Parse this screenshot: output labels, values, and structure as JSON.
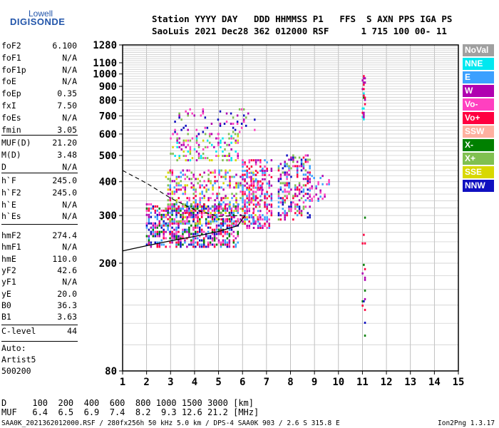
{
  "logo": {
    "line1": "Lowell",
    "line2": "DIGISONDE"
  },
  "header": {
    "row1": "Station YYYY DAY   DDD HHMMSS P1   FFS  S AXN PPS IGA PS",
    "row2": "SaoLuis 2021 Dec28 362 012000 RSF      1 715 100 00- 11"
  },
  "params": [
    {
      "name": "foF2",
      "value": "6.100"
    },
    {
      "name": "foF1",
      "value": "N/A"
    },
    {
      "name": "foF1p",
      "value": "N/A"
    },
    {
      "name": "foE",
      "value": "N/A"
    },
    {
      "name": "foEp",
      "value": "0.35"
    },
    {
      "name": "fxI",
      "value": "7.50"
    },
    {
      "name": "foEs",
      "value": "N/A"
    },
    {
      "name": "fmin",
      "value": "3.05"
    },
    {
      "name": "MUF(D)",
      "value": "21.20"
    },
    {
      "name": "M(D)",
      "value": "3.48"
    },
    {
      "name": "D",
      "value": "N/A"
    },
    {
      "name": "h`F",
      "value": "245.0"
    },
    {
      "name": "h`F2",
      "value": "245.0"
    },
    {
      "name": "h`E",
      "value": "N/A"
    },
    {
      "name": "h`Es",
      "value": "N/A"
    },
    {
      "name": "hmF2",
      "value": "274.4"
    },
    {
      "name": "hmF1",
      "value": "N/A"
    },
    {
      "name": "hmE",
      "value": "110.0"
    },
    {
      "name": "yF2",
      "value": "42.6"
    },
    {
      "name": "yF1",
      "value": "N/A"
    },
    {
      "name": "yE",
      "value": "20.0"
    },
    {
      "name": "B0",
      "value": "36.3"
    },
    {
      "name": "B1",
      "value": "3.63"
    }
  ],
  "c_level": {
    "name": "C-level",
    "value": "44"
  },
  "auto": {
    "line1": "Auto:",
    "line2": "Artist5",
    "line3": "500200"
  },
  "legend": [
    {
      "label": "NoVal",
      "bg": "#a0a0a0",
      "fg": "#ffffff"
    },
    {
      "label": "NNE",
      "bg": "#00e8f0",
      "fg": "#ffffff"
    },
    {
      "label": "E",
      "bg": "#3ba0ff",
      "fg": "#ffffff"
    },
    {
      "label": "W",
      "bg": "#b000b0",
      "fg": "#ffffff"
    },
    {
      "label": "Vo-",
      "bg": "#ff40c0",
      "fg": "#ffffff"
    },
    {
      "label": "Vo+",
      "bg": "#ff0040",
      "fg": "#ffffff"
    },
    {
      "label": "SSW",
      "bg": "#ffb0a0",
      "fg": "#ffffff"
    },
    {
      "label": "X-",
      "bg": "#008000",
      "fg": "#ffffff"
    },
    {
      "label": "X+",
      "bg": "#80c050",
      "fg": "#ffffff"
    },
    {
      "label": "SSE",
      "bg": "#d8d800",
      "fg": "#ffffff"
    },
    {
      "label": "NNW",
      "bg": "#1010c0",
      "fg": "#ffffff"
    }
  ],
  "footer": {
    "d_row": "D     100  200  400  600  800 1000 1500 3000 [km]",
    "muf_row": "MUF   6.4  6.5  6.9  7.4  8.2  9.3 12.6 21.2 [MHz]",
    "file_info": "SAA0K_2021362012000.RSF / 280fx256h 50 kHz 5.0 km / DPS-4 SAA0K 903 / 2.6 S 315.8 E",
    "version": "Ion2Png 1.3.17"
  },
  "chart_data": {
    "type": "scatter",
    "xlim": [
      1,
      15
    ],
    "ylim": [
      80,
      1280
    ],
    "y_scale": "log",
    "x_ticks": [
      "1",
      "2",
      "3",
      "4",
      "5",
      "6",
      "7",
      "8",
      "9",
      "10",
      "11",
      "12",
      "13",
      "14",
      "15"
    ],
    "y_ticks": [
      "80",
      "200",
      "300",
      "400",
      "500",
      "600",
      "700",
      "800",
      "900",
      "1000",
      "1100",
      "1280"
    ],
    "grid": true,
    "legend_position": "right",
    "clusters": [
      {
        "x": [
          2.0,
          5.8
        ],
        "y": [
          230,
          330
        ],
        "density": 1.0,
        "colors": [
          "#ff0040",
          "#ff40c0",
          "#b000b0",
          "#1010c0",
          "#3ba0ff",
          "#008000"
        ]
      },
      {
        "x": [
          2.8,
          6.8
        ],
        "y": [
          280,
          440
        ],
        "density": 0.6,
        "colors": [
          "#ff0040",
          "#ff40c0",
          "#b000b0",
          "#d8d800",
          "#80c050",
          "#3ba0ff"
        ]
      },
      {
        "x": [
          6.0,
          7.2
        ],
        "y": [
          270,
          480
        ],
        "density": 0.8,
        "colors": [
          "#ff0040",
          "#ff40c0",
          "#b000b0",
          "#3ba0ff"
        ]
      },
      {
        "x": [
          7.5,
          8.8
        ],
        "y": [
          290,
          500
        ],
        "density": 0.6,
        "colors": [
          "#ff40c0",
          "#ff0040",
          "#b000b0",
          "#1010c0",
          "#80c050",
          "#3ba0ff"
        ]
      },
      {
        "x": [
          8.8,
          9.6
        ],
        "y": [
          340,
          420
        ],
        "density": 0.4,
        "colors": [
          "#3ba0ff",
          "#ff40c0",
          "#b000b0"
        ]
      },
      {
        "x": [
          3.0,
          5.8
        ],
        "y": [
          480,
          600
        ],
        "density": 0.5,
        "colors": [
          "#d8d800",
          "#80c050",
          "#00e8f0",
          "#b000b0",
          "#ff40c0"
        ]
      },
      {
        "x": [
          3.0,
          6.5
        ],
        "y": [
          600,
          740
        ],
        "density": 0.2,
        "colors": [
          "#b000b0",
          "#1010c0",
          "#ff40c0",
          "#80c050"
        ]
      },
      {
        "x": [
          11.0,
          11.1
        ],
        "y": [
          680,
          1000
        ],
        "density": 0.6,
        "colors": [
          "#00e8f0",
          "#b000b0",
          "#008000",
          "#ff0040"
        ]
      },
      {
        "x": [
          11.0,
          11.1
        ],
        "y": [
          90,
          300
        ],
        "density": 0.2,
        "colors": [
          "#ff0040",
          "#b000b0",
          "#1010c0",
          "#008000"
        ]
      }
    ],
    "profile_solid": [
      [
        1.0,
        222
      ],
      [
        2.0,
        232
      ],
      [
        3.0,
        242
      ],
      [
        4.0,
        251
      ],
      [
        5.0,
        262
      ],
      [
        5.8,
        275
      ],
      [
        6.1,
        300
      ]
    ],
    "profile_dashed": [
      [
        1.0,
        440
      ],
      [
        2.0,
        395
      ],
      [
        3.0,
        348
      ],
      [
        4.0,
        315
      ],
      [
        5.0,
        298
      ],
      [
        6.1,
        300
      ]
    ]
  }
}
